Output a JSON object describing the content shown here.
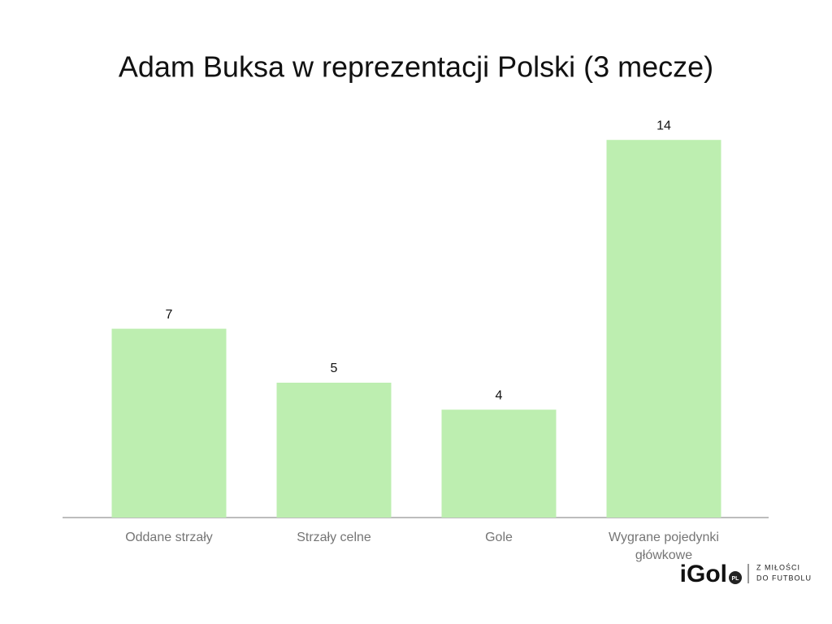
{
  "chart_data": {
    "type": "bar",
    "title": "Adam Buksa w reprezentacji Polski (3 mecze)",
    "categories": [
      "Oddane strzały",
      "Strzały celne",
      "Gole",
      "Wygrane pojedynki główkowe"
    ],
    "values": [
      7,
      5,
      4,
      14
    ],
    "color": "#bdeeb0",
    "ylim": [
      0,
      15
    ]
  },
  "logo": {
    "name": "iGol",
    "badge": "PL",
    "tagline": [
      "Z MIŁOŚCI",
      "DO FUTBOLU"
    ]
  }
}
